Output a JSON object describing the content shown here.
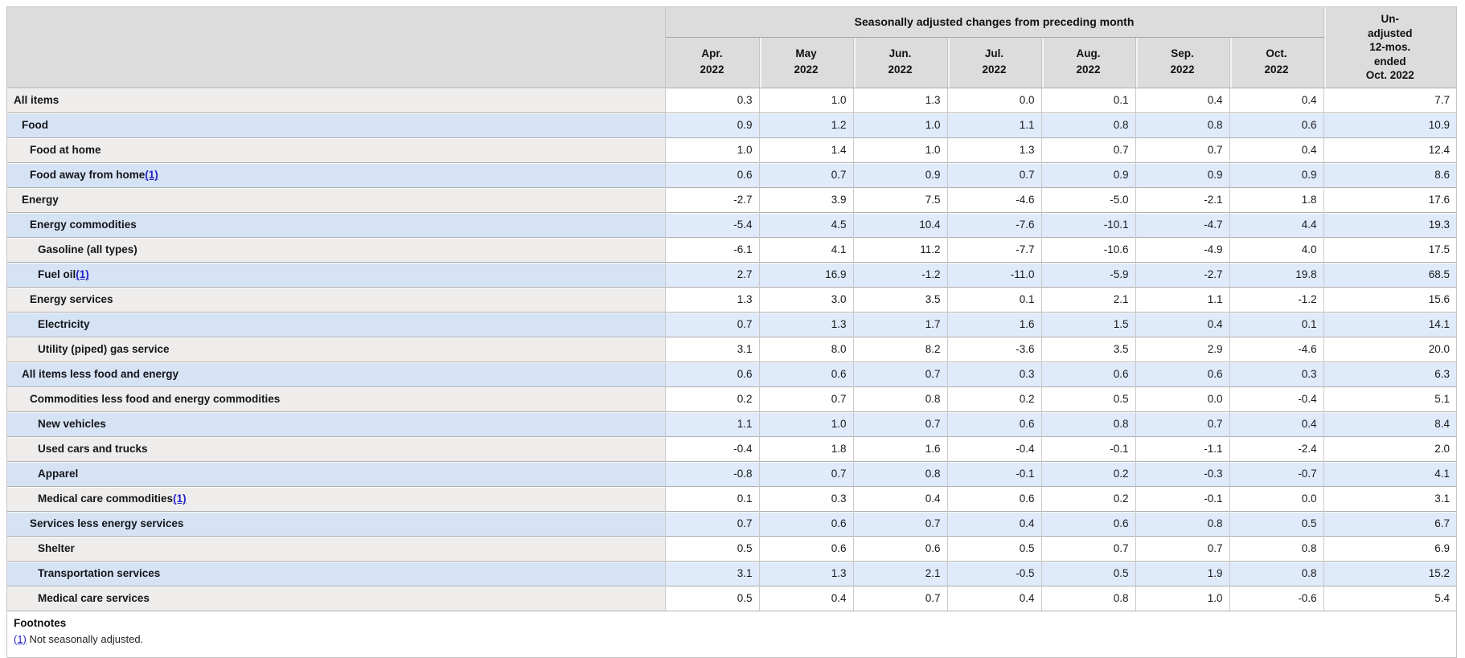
{
  "chart_data": {
    "type": "table",
    "group_header": "Seasonally adjusted changes from preceding month",
    "unadjusted_header": "Un-\nadjusted\n12-mos.\nended\nOct. 2022",
    "columns": [
      "Apr.\n2022",
      "May\n2022",
      "Jun.\n2022",
      "Jul.\n2022",
      "Aug.\n2022",
      "Sep.\n2022",
      "Oct.\n2022"
    ],
    "rows": [
      {
        "label": "All items",
        "indent": 0,
        "footnote_ref": null,
        "values": [
          "0.3",
          "1.0",
          "1.3",
          "0.0",
          "0.1",
          "0.4",
          "0.4",
          "7.7"
        ]
      },
      {
        "label": "Food",
        "indent": 1,
        "footnote_ref": null,
        "values": [
          "0.9",
          "1.2",
          "1.0",
          "1.1",
          "0.8",
          "0.8",
          "0.6",
          "10.9"
        ]
      },
      {
        "label": "Food at home",
        "indent": 2,
        "footnote_ref": null,
        "values": [
          "1.0",
          "1.4",
          "1.0",
          "1.3",
          "0.7",
          "0.7",
          "0.4",
          "12.4"
        ]
      },
      {
        "label": "Food away from home",
        "indent": 2,
        "footnote_ref": "(1)",
        "values": [
          "0.6",
          "0.7",
          "0.9",
          "0.7",
          "0.9",
          "0.9",
          "0.9",
          "8.6"
        ]
      },
      {
        "label": "Energy",
        "indent": 1,
        "footnote_ref": null,
        "values": [
          "-2.7",
          "3.9",
          "7.5",
          "-4.6",
          "-5.0",
          "-2.1",
          "1.8",
          "17.6"
        ]
      },
      {
        "label": "Energy commodities",
        "indent": 2,
        "footnote_ref": null,
        "values": [
          "-5.4",
          "4.5",
          "10.4",
          "-7.6",
          "-10.1",
          "-4.7",
          "4.4",
          "19.3"
        ]
      },
      {
        "label": "Gasoline (all types)",
        "indent": 3,
        "footnote_ref": null,
        "values": [
          "-6.1",
          "4.1",
          "11.2",
          "-7.7",
          "-10.6",
          "-4.9",
          "4.0",
          "17.5"
        ]
      },
      {
        "label": "Fuel oil",
        "indent": 3,
        "footnote_ref": "(1)",
        "values": [
          "2.7",
          "16.9",
          "-1.2",
          "-11.0",
          "-5.9",
          "-2.7",
          "19.8",
          "68.5"
        ]
      },
      {
        "label": "Energy services",
        "indent": 2,
        "footnote_ref": null,
        "values": [
          "1.3",
          "3.0",
          "3.5",
          "0.1",
          "2.1",
          "1.1",
          "-1.2",
          "15.6"
        ]
      },
      {
        "label": "Electricity",
        "indent": 3,
        "footnote_ref": null,
        "values": [
          "0.7",
          "1.3",
          "1.7",
          "1.6",
          "1.5",
          "0.4",
          "0.1",
          "14.1"
        ]
      },
      {
        "label": "Utility (piped) gas service",
        "indent": 3,
        "footnote_ref": null,
        "values": [
          "3.1",
          "8.0",
          "8.2",
          "-3.6",
          "3.5",
          "2.9",
          "-4.6",
          "20.0"
        ]
      },
      {
        "label": "All items less food and energy",
        "indent": 1,
        "footnote_ref": null,
        "values": [
          "0.6",
          "0.6",
          "0.7",
          "0.3",
          "0.6",
          "0.6",
          "0.3",
          "6.3"
        ]
      },
      {
        "label": "Commodities less food and energy commodities",
        "indent": 2,
        "footnote_ref": null,
        "values": [
          "0.2",
          "0.7",
          "0.8",
          "0.2",
          "0.5",
          "0.0",
          "-0.4",
          "5.1"
        ]
      },
      {
        "label": "New vehicles",
        "indent": 3,
        "footnote_ref": null,
        "values": [
          "1.1",
          "1.0",
          "0.7",
          "0.6",
          "0.8",
          "0.7",
          "0.4",
          "8.4"
        ]
      },
      {
        "label": "Used cars and trucks",
        "indent": 3,
        "footnote_ref": null,
        "values": [
          "-0.4",
          "1.8",
          "1.6",
          "-0.4",
          "-0.1",
          "-1.1",
          "-2.4",
          "2.0"
        ]
      },
      {
        "label": "Apparel",
        "indent": 3,
        "footnote_ref": null,
        "values": [
          "-0.8",
          "0.7",
          "0.8",
          "-0.1",
          "0.2",
          "-0.3",
          "-0.7",
          "4.1"
        ]
      },
      {
        "label": "Medical care commodities",
        "indent": 3,
        "footnote_ref": "(1)",
        "values": [
          "0.1",
          "0.3",
          "0.4",
          "0.6",
          "0.2",
          "-0.1",
          "0.0",
          "3.1"
        ]
      },
      {
        "label": "Services less energy services",
        "indent": 2,
        "footnote_ref": null,
        "values": [
          "0.7",
          "0.6",
          "0.7",
          "0.4",
          "0.6",
          "0.8",
          "0.5",
          "6.7"
        ]
      },
      {
        "label": "Shelter",
        "indent": 3,
        "footnote_ref": null,
        "values": [
          "0.5",
          "0.6",
          "0.6",
          "0.5",
          "0.7",
          "0.7",
          "0.8",
          "6.9"
        ]
      },
      {
        "label": "Transportation services",
        "indent": 3,
        "footnote_ref": null,
        "values": [
          "3.1",
          "1.3",
          "2.1",
          "-0.5",
          "0.5",
          "1.9",
          "0.8",
          "15.2"
        ]
      },
      {
        "label": "Medical care services",
        "indent": 3,
        "footnote_ref": null,
        "values": [
          "0.5",
          "0.4",
          "0.7",
          "0.4",
          "0.8",
          "1.0",
          "-0.6",
          "5.4"
        ]
      }
    ]
  },
  "footnotes": {
    "heading": "Footnotes",
    "items": [
      {
        "ref": "(1)",
        "text": "Not seasonally adjusted."
      }
    ]
  },
  "colors": {
    "header_bg": "#dcdcdc",
    "row_odd_label_bg": "#eeedec",
    "row_odd_value_bg": "#ffffff",
    "row_even_label_bg": "#d6e3f5",
    "row_even_value_bg": "#dfeafa",
    "border": "#b0b0b0",
    "link": "#2323cb"
  }
}
